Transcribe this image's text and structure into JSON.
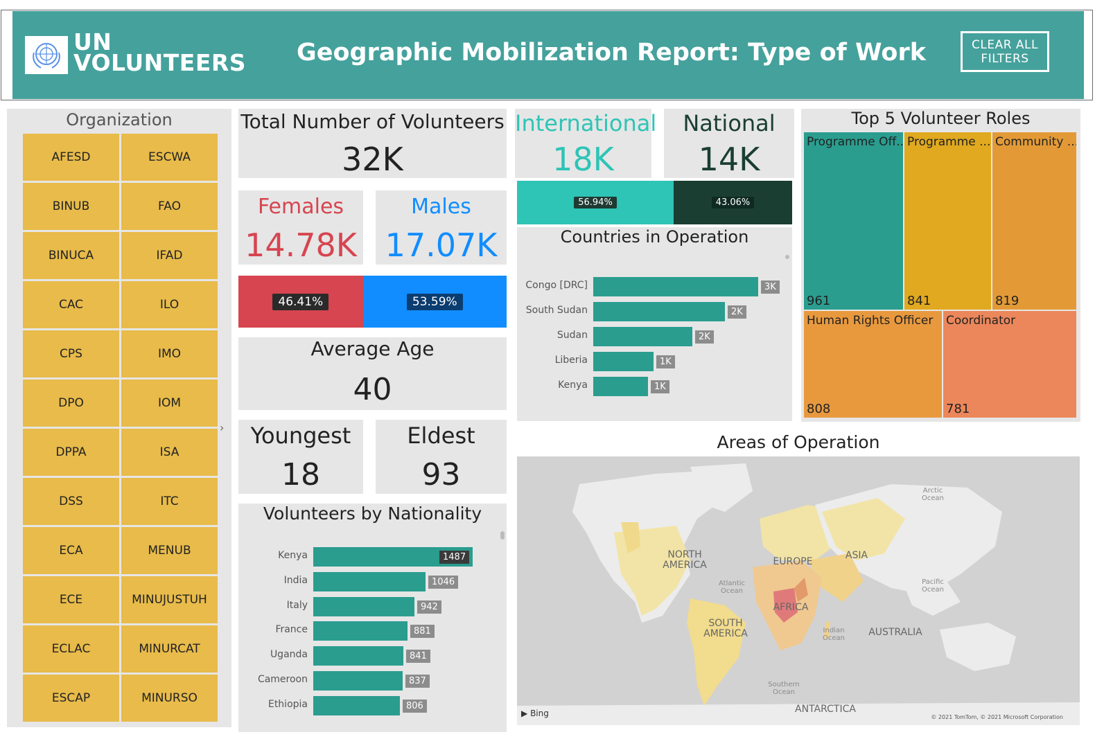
{
  "header": {
    "logo_line1": "UN",
    "logo_line2": "VOLUNTEERS",
    "title": "Geographic Mobilization Report: Type of Work",
    "clear_line1": "CLEAR ALL",
    "clear_line2": "FILTERS"
  },
  "organization": {
    "title": "Organization",
    "items": [
      "AFESD",
      "ESCWA",
      "BINUB",
      "FAO",
      "BINUCA",
      "IFAD",
      "CAC",
      "ILO",
      "CPS",
      "IMO",
      "DPO",
      "IOM",
      "DPPA",
      "ISA",
      "DSS",
      "ITC",
      "ECA",
      "MENUB",
      "ECE",
      "MINUJUSTUH",
      "ECLAC",
      "MINURCAT",
      "ESCAP",
      "MINURSO"
    ]
  },
  "kpis": {
    "total_label": "Total Number of Volunteers",
    "total_value": "32K",
    "females_label": "Females",
    "females_value": "14.78K",
    "males_label": "Males",
    "males_value": "17.07K",
    "females_pct": "46.41%",
    "males_pct": "53.59%",
    "avg_label": "Average Age",
    "avg_value": "40",
    "youngest_label": "Youngest",
    "youngest_value": "18",
    "eldest_label": "Eldest",
    "eldest_value": "93",
    "intl_label": "International",
    "intl_value": "18K",
    "natl_label": "National",
    "natl_value": "14K",
    "intl_pct": "56.94%",
    "natl_pct": "43.06%"
  },
  "colors": {
    "female": "#d64550",
    "male": "#118dff",
    "international": "#2ec4b6",
    "national": "#1a3e32",
    "bar": "#2a9d8f",
    "header": "#45a19c",
    "slicer": "#e8bb4a"
  },
  "chart_data": [
    {
      "type": "bar",
      "title": "Countries in Operation",
      "categories": [
        "Congo [DRC]",
        "South Sudan",
        "Sudan",
        "Liberia",
        "Kenya"
      ],
      "values": [
        3000,
        2400,
        1800,
        1100,
        1000
      ],
      "data_labels": [
        "3K",
        "2K",
        "2K",
        "1K",
        "1K"
      ]
    },
    {
      "type": "bar",
      "title": "Volunteers by Nationality",
      "categories": [
        "Kenya",
        "India",
        "Italy",
        "France",
        "Uganda",
        "Cameroon",
        "Ethiopia"
      ],
      "values": [
        1487,
        1046,
        942,
        881,
        841,
        837,
        806
      ]
    },
    {
      "type": "treemap",
      "title": "Top 5 Volunteer Roles",
      "categories": [
        "Programme Off...",
        "Programme ...",
        "Community ...",
        "Human Rights Officer",
        "Coordinator"
      ],
      "values": [
        961,
        841,
        819,
        808,
        781
      ],
      "colors": [
        "#2a9d8f",
        "#e0a91f",
        "#e39a36",
        "#e8993e",
        "#ec875b"
      ]
    }
  ],
  "map": {
    "title": "Areas of Operation",
    "labels": {
      "north_america": "NORTH AMERICA",
      "south_america": "SOUTH AMERICA",
      "europe": "EUROPE",
      "asia": "ASIA",
      "africa": "AFRICA",
      "australia": "AUSTRALIA",
      "antarctica": "ANTARCTICA",
      "arctic": "Arctic Ocean",
      "atlantic": "Atlantic Ocean",
      "pacific": "Pacific Ocean",
      "indian": "Indian Ocean",
      "southern": "Southern Ocean"
    },
    "bing": "Bing",
    "copyright": "© 2021 TomTom, © 2021 Microsoft Corporation"
  }
}
